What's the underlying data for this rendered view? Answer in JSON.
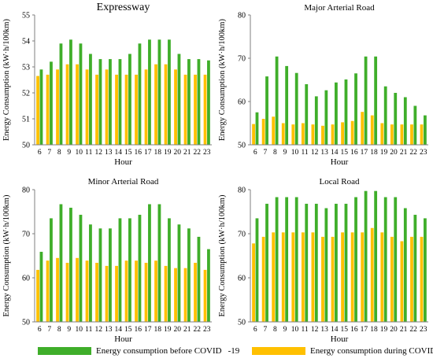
{
  "colors": {
    "before": "#3fae2a",
    "during": "#ffc000",
    "axis": "#7f7f7f"
  },
  "legend": {
    "before_label": "Energy consumption before COVID",
    "during_label": "Energy consumption during COVID",
    "suffix": "-19"
  },
  "chart_data": [
    {
      "type": "bar",
      "title": "Expressway",
      "xlabel": "Hour",
      "ylabel": "Energy Consumption (kW·h/100km)",
      "ylim": [
        50,
        55
      ],
      "yticks": [
        50,
        51,
        52,
        53,
        54,
        55
      ],
      "categories": [
        "6",
        "7",
        "8",
        "9",
        "10",
        "11",
        "12",
        "13",
        "14",
        "15",
        "16",
        "17",
        "18",
        "19",
        "20",
        "21",
        "22",
        "23"
      ],
      "series": [
        {
          "name": "Energy consumption before COVID-19",
          "values": [
            52.9,
            53.2,
            53.9,
            54.05,
            53.9,
            53.5,
            53.3,
            53.3,
            53.3,
            53.5,
            53.9,
            54.05,
            54.05,
            54.05,
            53.5,
            53.3,
            53.3,
            53.25
          ]
        },
        {
          "name": "Energy consumption during COVID-19",
          "values": [
            52.65,
            52.7,
            52.9,
            53.1,
            53.1,
            52.9,
            52.7,
            52.9,
            52.7,
            52.7,
            52.7,
            52.9,
            53.1,
            53.1,
            52.9,
            52.7,
            52.7,
            52.7
          ]
        }
      ]
    },
    {
      "type": "bar",
      "title": "Major Arterial Road",
      "xlabel": "Hour",
      "ylabel": "Energy Consumption (kW·h/100km)",
      "ylim": [
        50,
        80
      ],
      "yticks": [
        50,
        60,
        70,
        80
      ],
      "categories": [
        "6",
        "7",
        "8",
        "9",
        "10",
        "11",
        "12",
        "13",
        "14",
        "15",
        "16",
        "17",
        "18",
        "19",
        "20",
        "21",
        "22",
        "23"
      ],
      "series": [
        {
          "name": "Energy consumption before COVID-19",
          "values": [
            57.5,
            65.8,
            70.4,
            68.2,
            66.6,
            64,
            61.2,
            62.6,
            64.4,
            65.1,
            66.5,
            70.4,
            70.4,
            63.5,
            62,
            61,
            59,
            56.8
          ]
        },
        {
          "name": "Energy consumption during COVID-19",
          "values": [
            54.8,
            56,
            56.5,
            55,
            54.7,
            55,
            54.7,
            54.4,
            54.7,
            55.2,
            55.5,
            57.6,
            56.8,
            55,
            54.7,
            54.7,
            54.7,
            54.7
          ]
        }
      ]
    },
    {
      "type": "bar",
      "title": "Minor Arterial Road",
      "xlabel": "Hour",
      "ylabel": "Energy Consumption (kW·h/100km)",
      "ylim": [
        50,
        80
      ],
      "yticks": [
        50,
        60,
        70,
        80
      ],
      "categories": [
        "6",
        "7",
        "8",
        "9",
        "10",
        "11",
        "12",
        "13",
        "14",
        "15",
        "16",
        "17",
        "18",
        "19",
        "20",
        "21",
        "22",
        "23"
      ],
      "series": [
        {
          "name": "Energy consumption before COVID-19",
          "values": [
            65.9,
            73.5,
            76.7,
            75.9,
            74.3,
            72.1,
            71.2,
            71.2,
            73.5,
            73.5,
            74.3,
            76.7,
            76.7,
            73.5,
            72.1,
            71.2,
            69.3,
            66.5
          ]
        },
        {
          "name": "Energy consumption during COVID-19",
          "values": [
            61.8,
            63.9,
            64.5,
            63.4,
            64.5,
            63.9,
            63.4,
            62.7,
            62.7,
            63.9,
            63.9,
            63.4,
            63.9,
            62.7,
            62.2,
            62.2,
            63.4,
            61.8
          ]
        }
      ]
    },
    {
      "type": "bar",
      "title": "Local Road",
      "xlabel": "Hour",
      "ylabel": "Energy Consumption (kW·h/100km)",
      "ylim": [
        50,
        80
      ],
      "yticks": [
        50,
        60,
        70,
        80
      ],
      "categories": [
        "6",
        "7",
        "8",
        "9",
        "10",
        "11",
        "12",
        "13",
        "14",
        "15",
        "16",
        "17",
        "18",
        "19",
        "20",
        "21",
        "22",
        "23"
      ],
      "series": [
        {
          "name": "Energy consumption before COVID-19",
          "values": [
            73.5,
            76.8,
            78.3,
            78.3,
            78.3,
            76.8,
            76.8,
            75.8,
            76.8,
            76.8,
            78.3,
            79.7,
            79.7,
            78.3,
            78.3,
            75.8,
            74.3,
            73.5
          ]
        },
        {
          "name": "Energy consumption during COVID-19",
          "values": [
            67.8,
            69.3,
            70.3,
            70.3,
            70.3,
            70.3,
            70.3,
            69.3,
            69.3,
            70.3,
            70.3,
            70.3,
            71.3,
            70.3,
            69.3,
            68.3,
            69.3,
            69.3
          ]
        }
      ]
    }
  ]
}
